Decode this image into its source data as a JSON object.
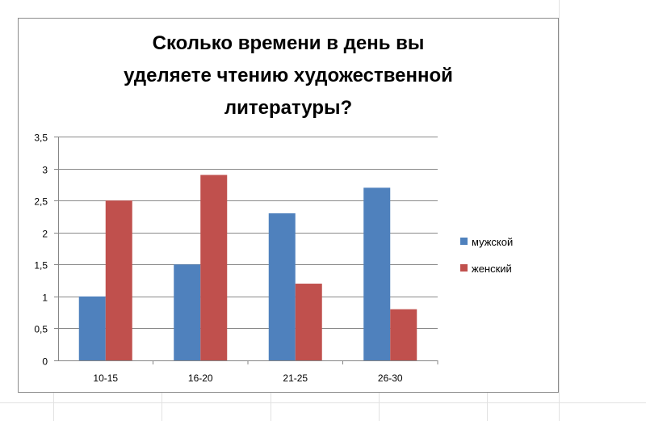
{
  "chart_data": {
    "type": "bar",
    "title": "Сколько времени в день вы\nуделяете чтению художественной\nлитературы?",
    "categories": [
      "10-15",
      "16-20",
      "21-25",
      "26-30"
    ],
    "series": [
      {
        "name": "мужской",
        "color": "#4f81bd",
        "values": [
          1.0,
          1.5,
          2.3,
          2.7
        ]
      },
      {
        "name": "женский",
        "color": "#c0504d",
        "values": [
          2.5,
          2.9,
          1.2,
          0.8
        ]
      }
    ],
    "yticks": [
      "0",
      "0,5",
      "1",
      "1,5",
      "2",
      "2,5",
      "3",
      "3,5"
    ],
    "ylim": [
      0,
      3.5
    ],
    "grid": true,
    "legend_position": "right"
  }
}
